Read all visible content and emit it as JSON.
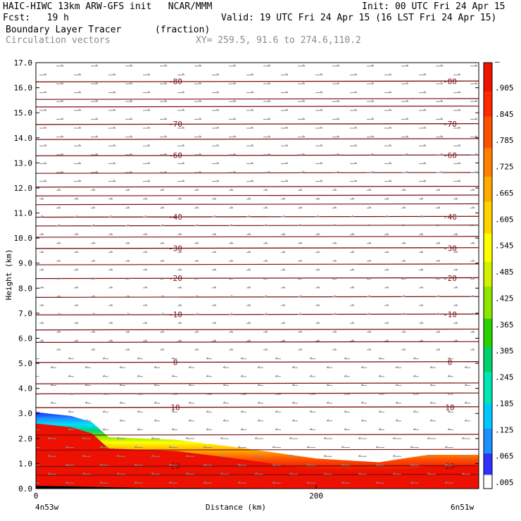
{
  "header": {
    "title": "HAIC-HIWC 13km ARW-GFS init   NCAR/MMM",
    "init": "Init: 00 UTC Fri 24 Apr 15",
    "fcst": "Fcst:   19 h",
    "valid": "Valid: 19 UTC Fri 24 Apr 15 (16 LST Fri 24 Apr 15)",
    "field": "Boundary Layer Tracer",
    "units": "(fraction)",
    "vectors": "Circulation vectors",
    "xy": "XY= 259.5, 91.6 to 274.6,110.2"
  },
  "chart_data": {
    "type": "cross-section",
    "xlabel": "Distance (km)",
    "ylabel": "Height (km)",
    "xlim": [
      0,
      316
    ],
    "ylim": [
      0.0,
      17.0
    ],
    "x_ticks": [
      0,
      200
    ],
    "y_ticks": [
      "0.0",
      "1.0",
      "2.0",
      "3.0",
      "4.0",
      "5.0",
      "6.0",
      "7.0",
      "8.0",
      "9.0",
      "10.0",
      "11.0",
      "12.0",
      "13.0",
      "14.0",
      "15.0",
      "16.0",
      "17.0"
    ],
    "endpoint_left": "4n53w",
    "endpoint_right": "6n51w",
    "colorbar_labels": [
      ".005",
      ".065",
      ".125",
      ".185",
      ".245",
      ".305",
      ".365",
      ".425",
      ".485",
      ".545",
      ".605",
      ".665",
      ".725",
      ".785",
      ".845",
      ".905",
      "–"
    ],
    "colorbar_colors": [
      "#ffffff",
      "#2020ff",
      "#1e90ff",
      "#00c8ff",
      "#00e6c8",
      "#00d27a",
      "#2ad200",
      "#8ce600",
      "#d2f000",
      "#ffff00",
      "#ffd200",
      "#ffaa00",
      "#ff8000",
      "#ff5000",
      "#ff2800",
      "#f01400",
      "#e00000"
    ],
    "temperature_contours": [
      {
        "label": "20",
        "height": 0.9
      },
      {
        "label": "10",
        "height": 3.25
      },
      {
        "label": "0",
        "height": 5.05
      },
      {
        "label": "-10",
        "height": 6.95
      },
      {
        "label": "-20",
        "height": 8.4
      },
      {
        "label": "-30",
        "height": 9.6
      },
      {
        "label": "-40",
        "height": 10.85
      },
      {
        "label": "-60",
        "height": 13.3
      },
      {
        "label": "-70",
        "height": 14.55
      },
      {
        "label": "-80",
        "height": 16.25
      }
    ],
    "plain_contour_heights": [
      0.55,
      1.55,
      2.15,
      3.8,
      4.2,
      5.85,
      6.35,
      7.65,
      8.95,
      10.05,
      10.5,
      11.35,
      11.7,
      12.05,
      12.6,
      13.95,
      15.25,
      15.55
    ],
    "boundary_layer_top_km": [
      {
        "x": 0,
        "top": 3.05
      },
      {
        "x": 25,
        "top": 2.9
      },
      {
        "x": 40,
        "top": 2.65
      },
      {
        "x": 52,
        "top": 2.05
      },
      {
        "x": 100,
        "top": 1.95
      },
      {
        "x": 150,
        "top": 1.6
      },
      {
        "x": 200,
        "top": 1.2
      },
      {
        "x": 245,
        "top": 1.05
      },
      {
        "x": 262,
        "top": 1.2
      },
      {
        "x": 280,
        "top": 1.35
      },
      {
        "x": 316,
        "top": 1.35
      }
    ]
  }
}
